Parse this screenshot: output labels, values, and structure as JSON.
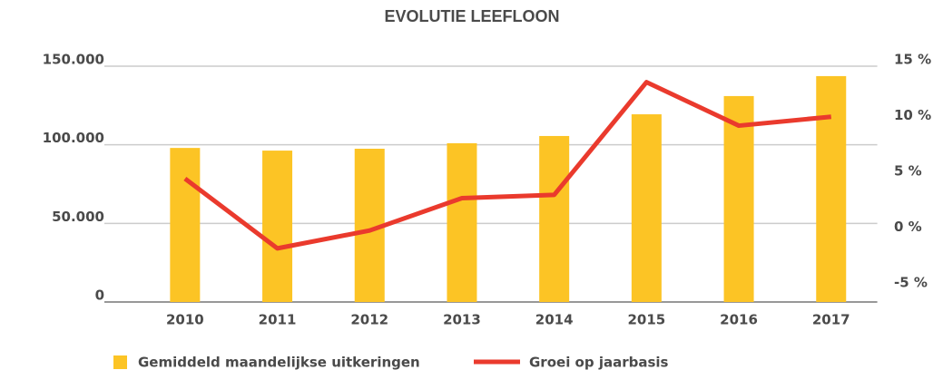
{
  "chart_data": {
    "type": "bar-line",
    "title": "EVOLUTIE LEEFLOON",
    "categories": [
      "2010",
      "2011",
      "2012",
      "2013",
      "2014",
      "2015",
      "2016",
      "2017"
    ],
    "series": [
      {
        "name": "Gemiddeld maandelijkse uitkeringen",
        "type": "bar",
        "color": "#fcc425",
        "values": [
          98000,
          96300,
          97500,
          101000,
          105600,
          119400,
          131000,
          143700
        ]
      },
      {
        "name": "Groei op jaarbasis",
        "type": "line",
        "axis": "y2",
        "color": "#ea3a2d",
        "values": [
          4.35,
          -1.9,
          -0.3,
          2.6,
          2.9,
          13.0,
          9.1,
          9.9
        ]
      }
    ],
    "ylim": [
      0,
      150000
    ],
    "yticks": [
      0,
      {
        "value": 50000,
        "label": "50.000"
      },
      {
        "value": 100000,
        "label": "100.000"
      },
      {
        "value": 150000,
        "label": "150.000"
      }
    ],
    "y2lim": [
      -5,
      15
    ],
    "y2ticks": [
      {
        "value": -5,
        "label": "-5 %"
      },
      {
        "value": 0,
        "label": "0 %"
      },
      {
        "value": 5,
        "label": "5 %"
      },
      {
        "value": 10,
        "label": "10 %"
      },
      {
        "value": 15,
        "label": "15 %"
      }
    ],
    "grid": true,
    "legend": "bottom"
  }
}
